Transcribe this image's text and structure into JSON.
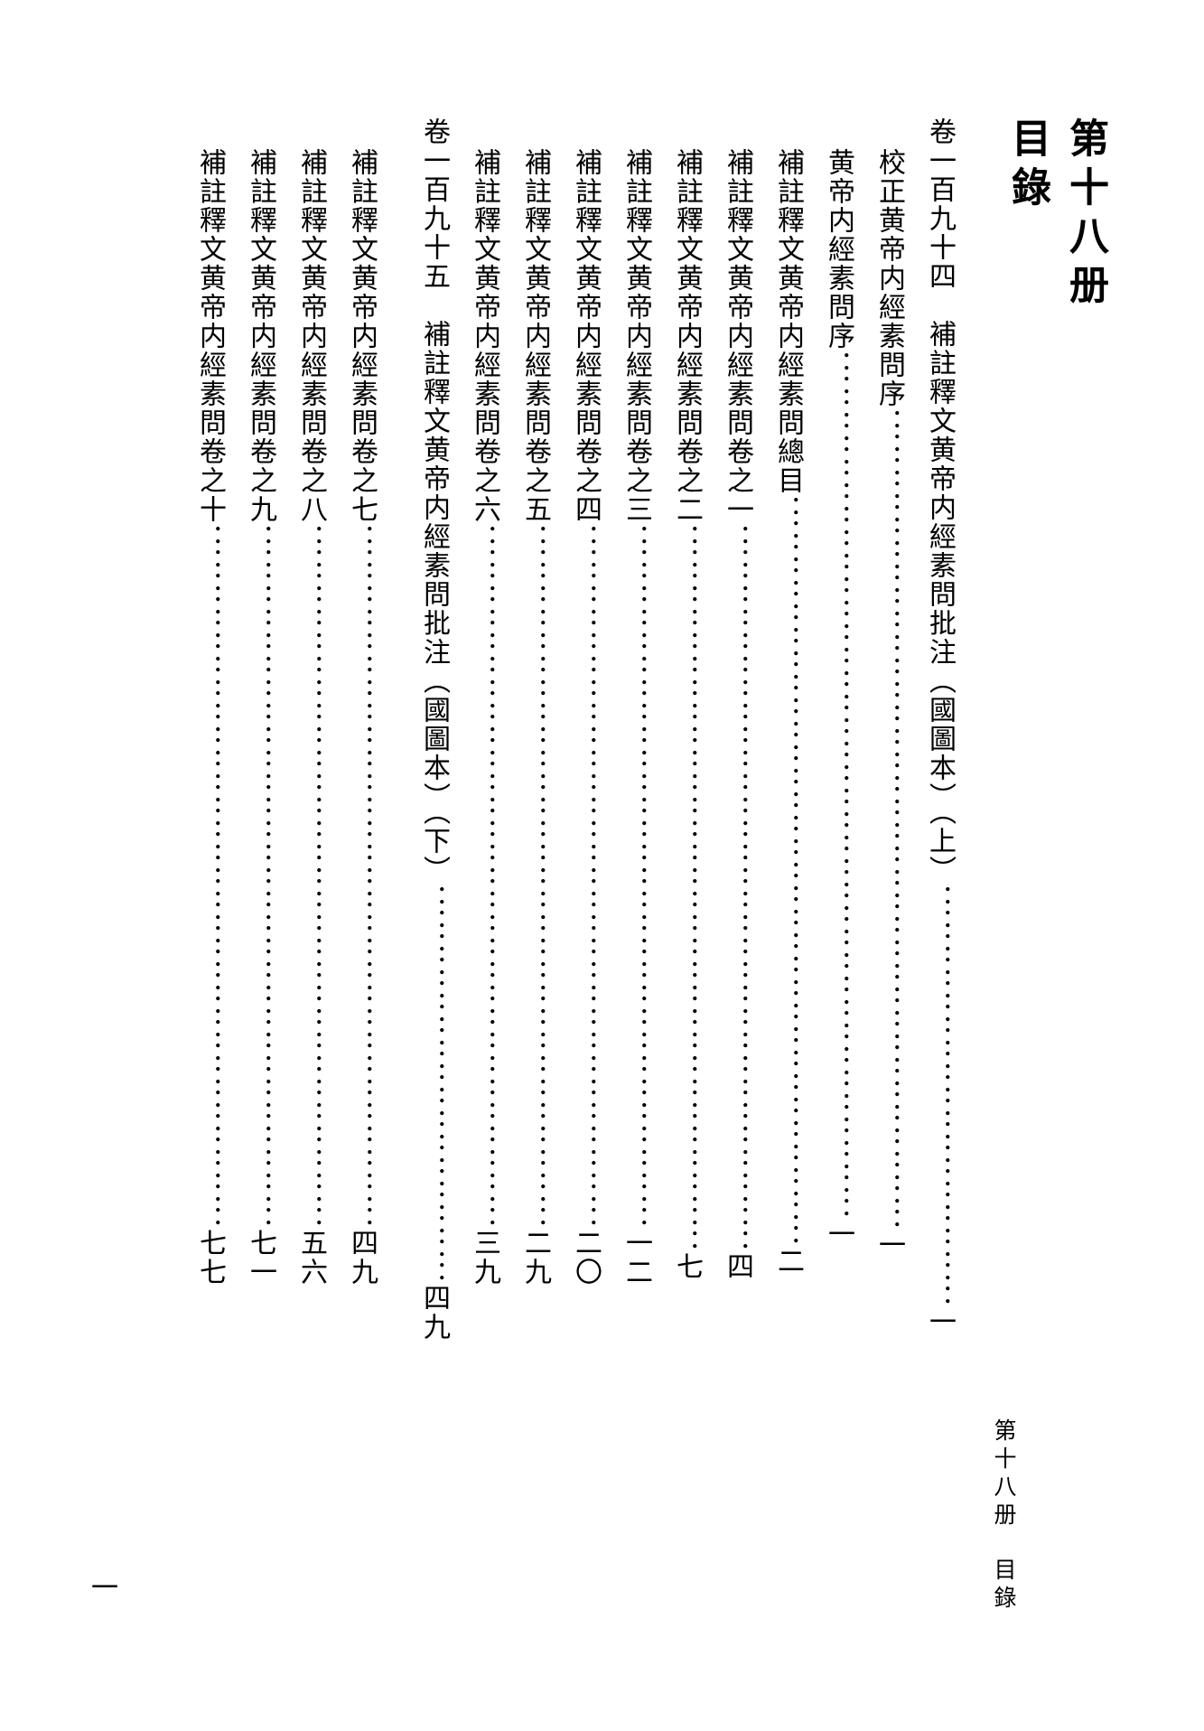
{
  "title": {
    "line1": "第十八册",
    "line2": "目錄"
  },
  "running": {
    "a": "第十八册",
    "b": "目錄"
  },
  "pageNumber": "一",
  "layout": {
    "entryHeight": 1620,
    "titleFontSize": 44,
    "bodyFontSize": 30,
    "runningFontSize": 25,
    "textColor": "#000000",
    "bgColor": "#ffffff"
  },
  "columns": [
    {
      "type": "section",
      "indent": 0,
      "label": "卷一百九十四　補註釋文黄帝内經素問批注（國圖本）（上）",
      "page": "一"
    },
    {
      "type": "entry",
      "indent": 1,
      "label": "校正黄帝内經素問序",
      "page": "一"
    },
    {
      "type": "entry",
      "indent": 1,
      "label": "黄帝内經素問序",
      "page": "一"
    },
    {
      "type": "entry",
      "indent": 1,
      "label": "補註釋文黄帝内經素問總目",
      "page": "二"
    },
    {
      "type": "entry",
      "indent": 1,
      "label": "補註釋文黄帝内經素問卷之一",
      "page": "四"
    },
    {
      "type": "entry",
      "indent": 1,
      "label": "補註釋文黄帝内經素問卷之二",
      "page": "七"
    },
    {
      "type": "entry",
      "indent": 1,
      "label": "補註釋文黄帝内經素問卷之三",
      "page": "一二"
    },
    {
      "type": "entry",
      "indent": 1,
      "label": "補註釋文黄帝内經素問卷之四",
      "page": "二〇"
    },
    {
      "type": "entry",
      "indent": 1,
      "label": "補註釋文黄帝内經素問卷之五",
      "page": "二九"
    },
    {
      "type": "entry",
      "indent": 1,
      "label": "補註釋文黄帝内經素問卷之六",
      "page": "三九"
    },
    {
      "type": "section",
      "indent": 0,
      "label": "卷一百九十五　補註釋文黄帝内經素問批注（國圖本）（下）",
      "page": "四九"
    },
    {
      "type": "entry",
      "indent": 1,
      "label": "補註釋文黄帝内經素問卷之七",
      "page": "四九"
    },
    {
      "type": "entry",
      "indent": 1,
      "label": "補註釋文黄帝内經素問卷之八",
      "page": "五六"
    },
    {
      "type": "entry",
      "indent": 1,
      "label": "補註釋文黄帝内經素問卷之九",
      "page": "七一"
    },
    {
      "type": "entry",
      "indent": 1,
      "label": "補註釋文黄帝内經素問卷之十",
      "page": "七七"
    }
  ]
}
